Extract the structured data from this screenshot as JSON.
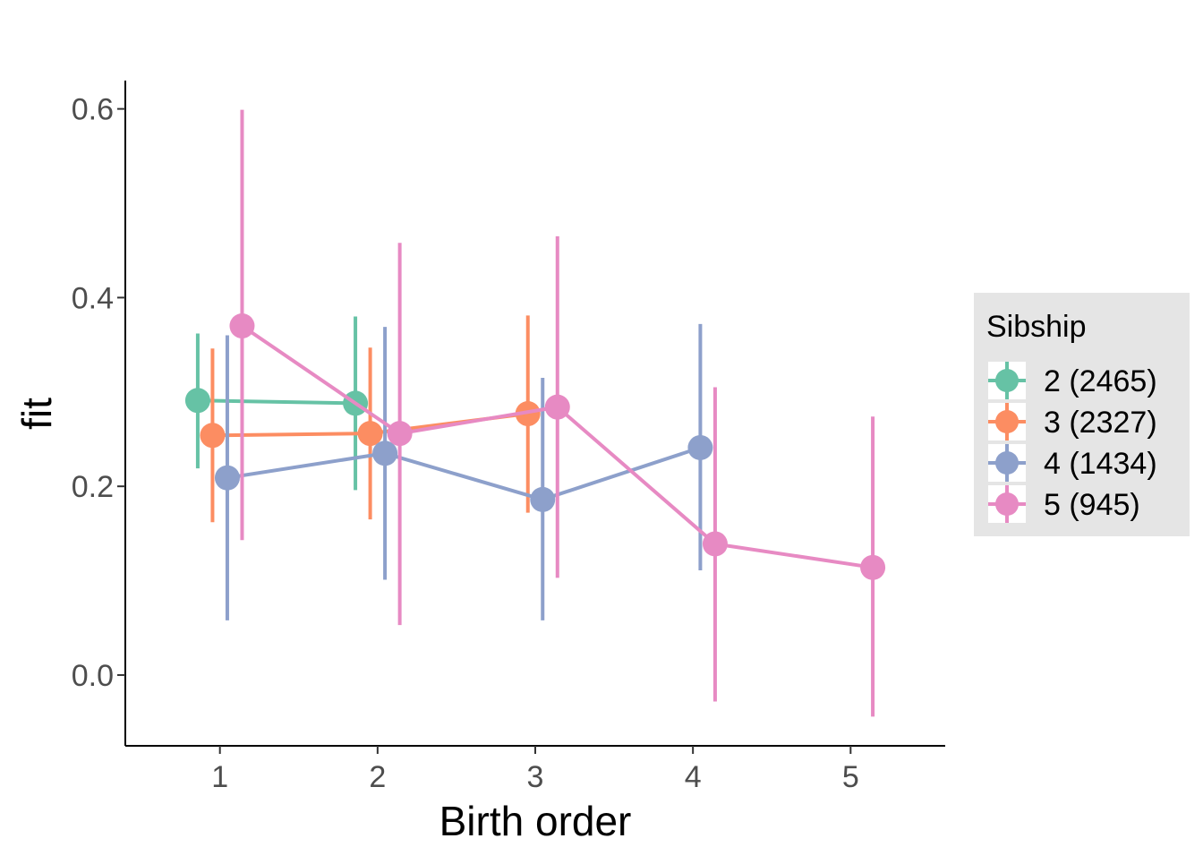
{
  "chart_data": {
    "type": "line",
    "title": "",
    "xlabel": "Birth order",
    "ylabel": "fit",
    "xlim": [
      0.4,
      5.6
    ],
    "ylim": [
      -0.075,
      0.63
    ],
    "x_ticks": [
      1,
      2,
      3,
      4,
      5
    ],
    "x_tick_labels": [
      "1",
      "2",
      "3",
      "4",
      "5"
    ],
    "y_ticks": [
      0.0,
      0.2,
      0.4,
      0.6
    ],
    "y_tick_labels": [
      "0.0",
      "0.2",
      "0.4",
      "0.6"
    ],
    "grid": false,
    "error_bars": true,
    "dodge": 0.375,
    "legend": {
      "title": "Sibship",
      "position": "right"
    },
    "series": [
      {
        "name": "2 (2465)",
        "color": "#66c2a5",
        "x": [
          1,
          2
        ],
        "y": [
          0.291,
          0.288
        ],
        "lower": [
          0.219,
          0.196
        ],
        "upper": [
          0.362,
          0.38
        ]
      },
      {
        "name": "3 (2327)",
        "color": "#fc8d62",
        "x": [
          1,
          2,
          3
        ],
        "y": [
          0.254,
          0.256,
          0.277
        ],
        "lower": [
          0.162,
          0.165,
          0.172
        ],
        "upper": [
          0.346,
          0.347,
          0.381
        ]
      },
      {
        "name": "4 (1434)",
        "color": "#8da0cb",
        "x": [
          1,
          2,
          3,
          4
        ],
        "y": [
          0.209,
          0.235,
          0.186,
          0.241
        ],
        "lower": [
          0.058,
          0.101,
          0.058,
          0.111
        ],
        "upper": [
          0.36,
          0.369,
          0.315,
          0.372
        ]
      },
      {
        "name": "5 (945)",
        "color": "#e78ac3",
        "x": [
          1,
          2,
          3,
          4,
          5
        ],
        "y": [
          0.37,
          0.256,
          0.284,
          0.139,
          0.114
        ],
        "lower": [
          0.143,
          0.053,
          0.103,
          -0.028,
          -0.044
        ],
        "upper": [
          0.599,
          0.458,
          0.465,
          0.305,
          0.274
        ]
      }
    ]
  },
  "legend_bg_color": "#e5e5e5"
}
